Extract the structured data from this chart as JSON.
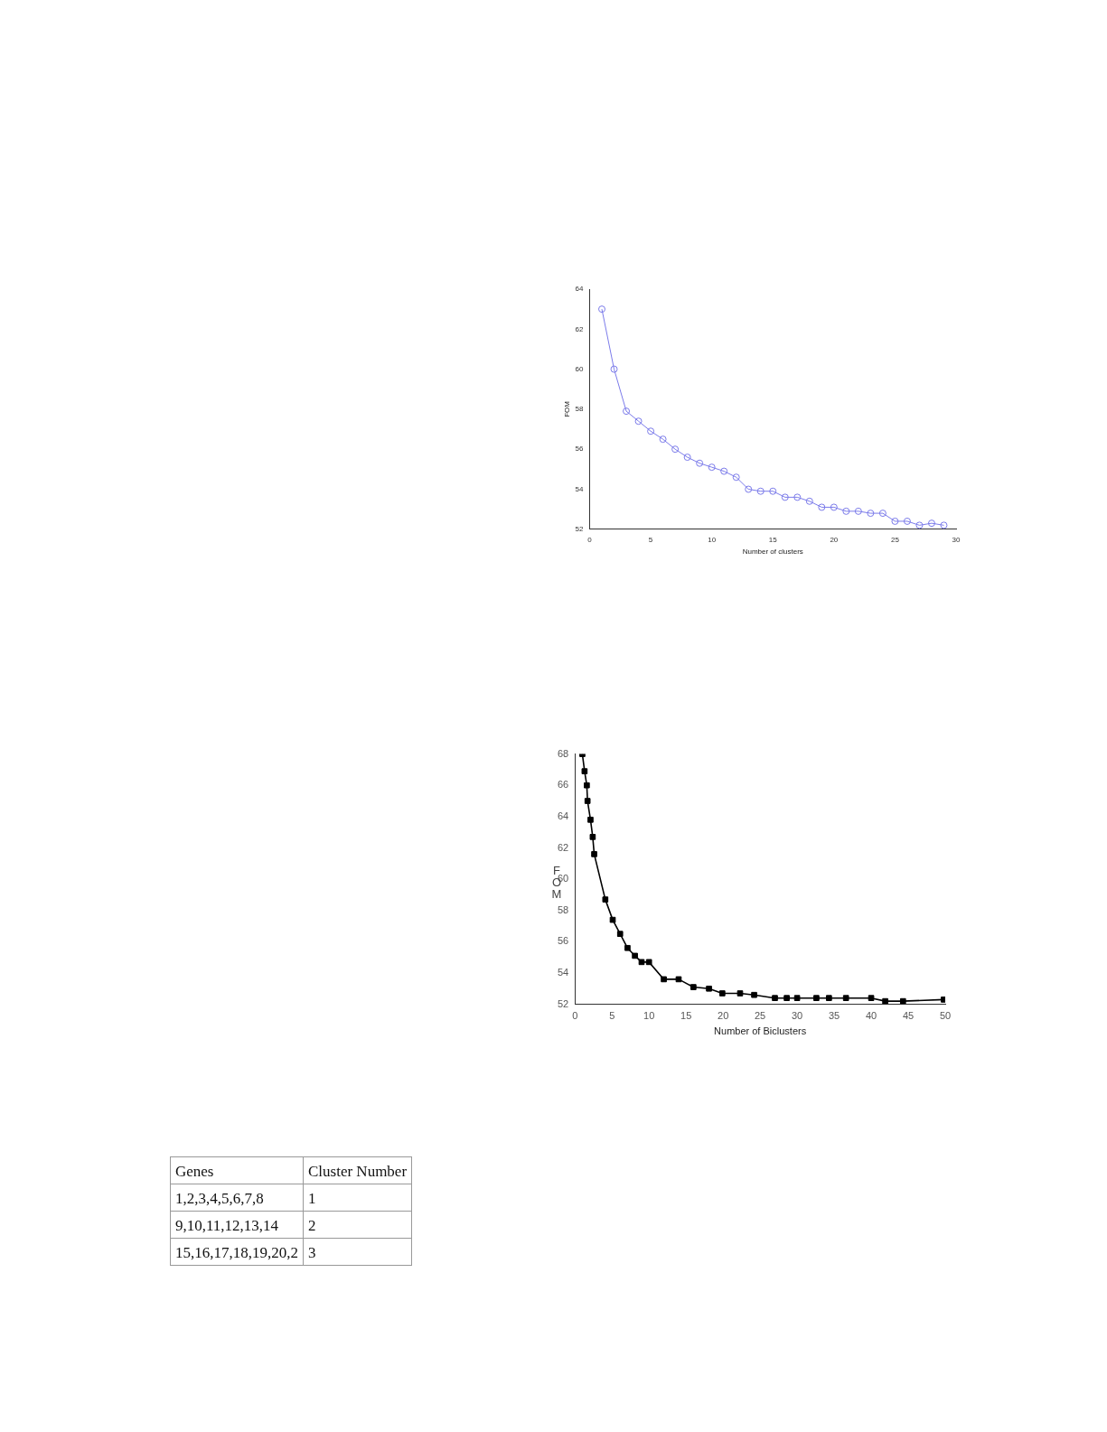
{
  "chart_data": [
    {
      "type": "line",
      "xlabel": "Number of clusters",
      "ylabel": "FOM",
      "color": "#7b7bea",
      "marker": "circle",
      "x": [
        1,
        2,
        3,
        4,
        5,
        6,
        7,
        8,
        9,
        10,
        11,
        12,
        13,
        14,
        15,
        16,
        17,
        18,
        19,
        20,
        21,
        22,
        23,
        24,
        25,
        26,
        27,
        28,
        29
      ],
      "values": [
        63.0,
        60.0,
        57.9,
        57.4,
        56.9,
        56.5,
        56.0,
        55.6,
        55.3,
        55.1,
        54.9,
        54.6,
        54.0,
        53.9,
        53.9,
        53.6,
        53.6,
        53.4,
        53.1,
        53.1,
        52.9,
        52.9,
        52.8,
        52.8,
        52.4,
        52.4,
        52.2,
        52.3,
        52.2
      ],
      "xlim": [
        0,
        30
      ],
      "xticks": [
        0,
        5,
        10,
        15,
        20,
        25,
        30
      ],
      "ylim": [
        52,
        64
      ],
      "yticks": [
        52,
        54,
        56,
        58,
        60,
        62,
        64
      ]
    },
    {
      "type": "line",
      "xlabel": "Number of Biclusters",
      "ylabel": "FOM",
      "color": "#000000",
      "marker": "square",
      "x": [
        1.0,
        1.3,
        1.6,
        1.7,
        2.1,
        2.4,
        2.6,
        4.1,
        5.1,
        6.1,
        7.1,
        8.1,
        9.0,
        10.0,
        12.0,
        14.0,
        16.0,
        18.1,
        19.9,
        22.3,
        24.2,
        27.0,
        28.6,
        30.0,
        32.6,
        34.3,
        36.6,
        40.0,
        41.9,
        44.3,
        49.8
      ],
      "values": [
        68.0,
        66.9,
        66.0,
        65.0,
        63.8,
        62.7,
        61.6,
        58.7,
        57.4,
        56.5,
        55.6,
        55.1,
        54.7,
        54.7,
        53.6,
        53.6,
        53.1,
        53.0,
        52.7,
        52.7,
        52.6,
        52.4,
        52.4,
        52.4,
        52.4,
        52.4,
        52.4,
        52.4,
        52.2,
        52.2,
        52.3
      ],
      "xlim": [
        0,
        50
      ],
      "xticks": [
        0,
        5,
        10,
        15,
        20,
        25,
        30,
        35,
        40,
        45,
        50
      ],
      "ylim": [
        52,
        68
      ],
      "yticks": [
        52,
        54,
        56,
        58,
        60,
        62,
        64,
        66,
        68
      ]
    },
    {
      "type": "other",
      "annotations": [
        "Genes",
        "Cluster Number",
        "1,2,3,4,5,6,7,8",
        "1",
        "9,10,11,12,13,14",
        "2",
        "15,16,17,18,19,20,2",
        "3"
      ]
    }
  ]
}
